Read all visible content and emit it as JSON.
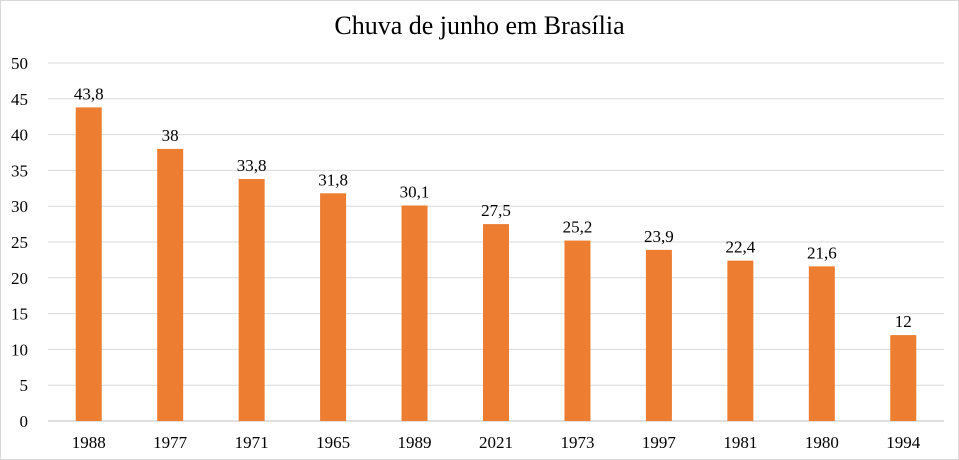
{
  "chart_data": {
    "type": "bar",
    "title": "Chuva de junho em Brasília",
    "categories": [
      "1988",
      "1977",
      "1971",
      "1965",
      "1989",
      "2021",
      "1973",
      "1997",
      "1981",
      "1980",
      "1994"
    ],
    "values": [
      43.8,
      38,
      33.8,
      31.8,
      30.1,
      27.5,
      25.2,
      23.9,
      22.4,
      21.6,
      12
    ],
    "data_labels": [
      "43,8",
      "38",
      "33,8",
      "31,8",
      "30,1",
      "27,5",
      "25,2",
      "23,9",
      "22,4",
      "21,6",
      "12"
    ],
    "yticks": [
      "0",
      "5",
      "10",
      "15",
      "20",
      "25",
      "30",
      "35",
      "40",
      "45",
      "50"
    ],
    "ylim": [
      0,
      50
    ],
    "grid": true,
    "legend": "none",
    "colors": {
      "bar": "#ed7d31",
      "grid": "#d9d9d9",
      "axis": "#bfbfbf"
    }
  }
}
